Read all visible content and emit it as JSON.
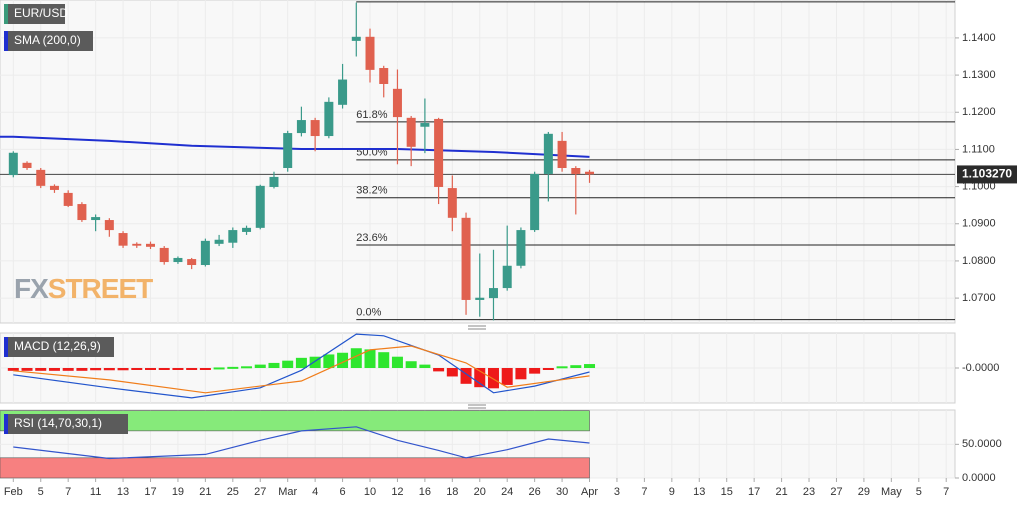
{
  "chart_data": [
    {
      "type": "candlestick",
      "name": "EUR/USD",
      "legend_color": "#3a9a7a",
      "up_color": "#3a9a8a",
      "down_color": "#e0614f",
      "x": [
        0,
        1,
        2,
        3,
        4,
        5,
        6,
        7,
        8,
        9,
        10,
        11,
        12,
        13,
        14,
        15,
        16,
        17,
        18,
        19,
        20,
        21,
        22,
        23,
        24,
        25,
        26,
        27,
        28,
        29,
        30,
        31,
        32,
        33,
        34,
        35,
        36,
        37,
        38,
        39,
        40,
        41,
        42
      ],
      "open": [
        1.1031,
        1.1064,
        1.1045,
        1.1002,
        1.0983,
        1.0953,
        1.091,
        1.091,
        1.0875,
        1.0846,
        1.0846,
        1.0835,
        1.0797,
        1.0805,
        1.0789,
        1.0846,
        1.0849,
        1.0878,
        1.0889,
        1.0999,
        1.105,
        1.1144,
        1.1179,
        1.1136,
        1.122,
        1.1392,
        1.1403,
        1.1319,
        1.1263,
        1.1185,
        1.1161,
        1.1182,
        1.0996,
        1.0916,
        1.0695,
        1.07,
        1.0727,
        1.0787,
        1.0883,
        1.1034,
        1.1123,
        1.105,
        1.104
      ],
      "high": [
        1.1095,
        1.1068,
        1.105,
        1.1006,
        1.099,
        1.0958,
        1.0925,
        1.0915,
        1.088,
        1.085,
        1.0852,
        1.084,
        1.0812,
        1.0808,
        1.086,
        1.087,
        1.089,
        1.0895,
        1.1005,
        1.104,
        1.115,
        1.1215,
        1.1185,
        1.124,
        1.133,
        1.1495,
        1.1425,
        1.1325,
        1.1315,
        1.119,
        1.1237,
        1.1185,
        1.103,
        1.093,
        1.082,
        1.083,
        1.0895,
        1.089,
        1.104,
        1.1147,
        1.1147,
        1.1055,
        1.1045
      ],
      "low": [
        1.1025,
        1.1045,
        1.0996,
        1.0983,
        1.0945,
        1.0905,
        1.088,
        1.0865,
        1.0835,
        1.0835,
        1.0832,
        1.079,
        1.0792,
        1.0778,
        1.0785,
        1.084,
        1.0835,
        1.087,
        1.0885,
        1.0995,
        1.104,
        1.1135,
        1.1095,
        1.113,
        1.121,
        1.135,
        1.128,
        1.124,
        1.106,
        1.1055,
        1.109,
        1.0953,
        1.088,
        1.0655,
        1.065,
        1.064,
        1.072,
        1.078,
        1.0878,
        1.096,
        1.104,
        1.0925,
        1.101
      ],
      "close": [
        1.1091,
        1.105,
        1.1002,
        1.0991,
        1.0948,
        1.091,
        1.0918,
        1.0883,
        1.0841,
        1.0841,
        1.0838,
        1.0797,
        1.0808,
        1.0789,
        1.0854,
        1.0857,
        1.0883,
        1.0889,
        1.1002,
        1.1026,
        1.1144,
        1.1179,
        1.1136,
        1.1228,
        1.1288,
        1.1403,
        1.1314,
        1.1276,
        1.1187,
        1.1107,
        1.1171,
        1.0999,
        1.0916,
        1.0695,
        1.0701,
        1.0727,
        1.0787,
        1.0883,
        1.1034,
        1.1142,
        1.105,
        1.1034,
        1.1033
      ],
      "series": [
        {
          "name": "SMA (200,0)",
          "color": "#1f2fd0",
          "x": [
            0,
            7,
            13,
            21,
            28,
            35,
            42
          ],
          "values": [
            1.1134,
            1.1123,
            1.111,
            1.1101,
            1.1101,
            1.1093,
            1.108
          ]
        }
      ],
      "levels_x": 25,
      "levels": [
        {
          "value": 1.1497
        },
        {
          "label": "61.8%",
          "value": 1.1174
        },
        {
          "label": "50.0%",
          "value": 1.1072
        },
        {
          "label": "38.2%",
          "value": 1.097
        },
        {
          "label": "23.6%",
          "value": 1.0843
        },
        {
          "label": "0.0%",
          "value": 1.0642
        }
      ],
      "last_price": {
        "value": 1.10327,
        "label": "1.103270"
      },
      "watermark": [
        "FX",
        "STREET"
      ],
      "xlim": [
        -0.97,
        68.64
      ],
      "ylim": [
        1.0633,
        1.1502
      ],
      "yticks": [
        {
          "value": 1.07,
          "label": "1.0700"
        },
        {
          "value": 1.08,
          "label": "1.0800"
        },
        {
          "value": 1.09,
          "label": "1.0900"
        },
        {
          "value": 1.1,
          "label": "1.1000"
        },
        {
          "value": 1.11,
          "label": "1.1100"
        },
        {
          "value": 1.12,
          "label": "1.1200"
        },
        {
          "value": 1.13,
          "label": "1.1300"
        },
        {
          "value": 1.14,
          "label": "1.1400"
        }
      ],
      "grid": true
    },
    {
      "type": "macd",
      "name": "MACD (12,26,9)",
      "legend_color": "#1f2fd0",
      "up_color": "#2ee62e",
      "down_color": "#ee1a1a",
      "x": [
        0,
        1,
        2,
        3,
        4,
        5,
        6,
        7,
        8,
        9,
        10,
        11,
        12,
        13,
        14,
        15,
        16,
        17,
        18,
        19,
        20,
        21,
        22,
        23,
        24,
        25,
        26,
        27,
        28,
        29,
        30,
        31,
        32,
        33,
        34,
        35,
        36,
        37,
        38,
        39,
        40,
        41,
        42
      ],
      "values": [
        -0.0005,
        -0.0005,
        -0.0005,
        -0.0005,
        -0.0005,
        -0.0005,
        -0.0004,
        -0.0004,
        -0.0004,
        -0.0003,
        -0.0003,
        -0.0002,
        -0.0002,
        -0.0001,
        -0.0001,
        0.0001,
        0.0002,
        0.0003,
        0.0006,
        0.0009,
        0.0013,
        0.0018,
        0.002,
        0.0024,
        0.0027,
        0.0035,
        0.0033,
        0.0028,
        0.002,
        0.0012,
        0.0006,
        -0.0006,
        -0.0015,
        -0.0028,
        -0.0034,
        -0.0036,
        -0.003,
        -0.002,
        -0.001,
        -0.0002,
        0.0003,
        0.0005,
        0.0007
      ],
      "series": [
        {
          "color": "#2255cc",
          "x": [
            0,
            7,
            13,
            18,
            21,
            25,
            27,
            31,
            35,
            38,
            42
          ],
          "values": [
            -0.0012,
            -0.0035,
            -0.0053,
            -0.0035,
            -0.0004,
            0.006,
            0.0057,
            0.0023,
            -0.0044,
            -0.0032,
            -0.0007
          ]
        },
        {
          "color": "#f07d1a",
          "x": [
            0,
            7,
            14,
            21,
            26,
            29,
            33,
            36,
            42
          ],
          "values": [
            -0.0005,
            -0.0021,
            -0.0044,
            -0.0023,
            0.0032,
            0.0039,
            0.0009,
            -0.0034,
            -0.0014
          ]
        }
      ],
      "xlim": [
        -0.97,
        68.64
      ],
      "ylim": [
        -0.0062,
        0.0062
      ],
      "yticks": [
        {
          "value": 0,
          "label": "-0.0000"
        }
      ],
      "grid": true
    },
    {
      "type": "line",
      "name": "RSI (14,70,30,1)",
      "legend_color": "#1f2fd0",
      "series": [
        {
          "color": "#3355cc",
          "x": [
            0,
            7,
            14,
            18,
            21,
            25,
            28,
            31,
            33,
            36,
            39,
            42
          ],
          "values": [
            46,
            29,
            35,
            56,
            70,
            76,
            56,
            41,
            30,
            42,
            58,
            52
          ]
        }
      ],
      "bands": [
        {
          "from": 70,
          "to": 100,
          "color": "#86ea7a"
        },
        {
          "from": 0,
          "to": 30,
          "color": "#f78080"
        }
      ],
      "bands_x": 42,
      "xlim": [
        -0.97,
        68.64
      ],
      "ylim": [
        0,
        101
      ],
      "yticks": [
        {
          "value": 0,
          "label": "0.0000"
        },
        {
          "value": 50,
          "label": "50.0000"
        }
      ],
      "xticks": [
        {
          "value": 0,
          "label": "Feb"
        },
        {
          "value": 2,
          "label": "5"
        },
        {
          "value": 4,
          "label": "7"
        },
        {
          "value": 6,
          "label": "11"
        },
        {
          "value": 8,
          "label": "13"
        },
        {
          "value": 10,
          "label": "17"
        },
        {
          "value": 12,
          "label": "19"
        },
        {
          "value": 14,
          "label": "21"
        },
        {
          "value": 16,
          "label": "25"
        },
        {
          "value": 18,
          "label": "27"
        },
        {
          "value": 20,
          "label": "Mar"
        },
        {
          "value": 22,
          "label": "4"
        },
        {
          "value": 24,
          "label": "6"
        },
        {
          "value": 26,
          "label": "10"
        },
        {
          "value": 28,
          "label": "12"
        },
        {
          "value": 30,
          "label": "16"
        },
        {
          "value": 32,
          "label": "18"
        },
        {
          "value": 34,
          "label": "20"
        },
        {
          "value": 36,
          "label": "24"
        },
        {
          "value": 38,
          "label": "26"
        },
        {
          "value": 40,
          "label": "30"
        },
        {
          "value": 42,
          "label": "Apr"
        },
        {
          "value": 44,
          "label": "3"
        },
        {
          "value": 46,
          "label": "7"
        },
        {
          "value": 48,
          "label": "9"
        },
        {
          "value": 50,
          "label": "13"
        },
        {
          "value": 52,
          "label": "15"
        },
        {
          "value": 54,
          "label": "17"
        },
        {
          "value": 56,
          "label": "21"
        },
        {
          "value": 58,
          "label": "23"
        },
        {
          "value": 60,
          "label": "27"
        },
        {
          "value": 62,
          "label": "29"
        },
        {
          "value": 64,
          "label": "May"
        },
        {
          "value": 66,
          "label": "5"
        },
        {
          "value": 68,
          "label": "7"
        }
      ],
      "grid": true
    }
  ]
}
